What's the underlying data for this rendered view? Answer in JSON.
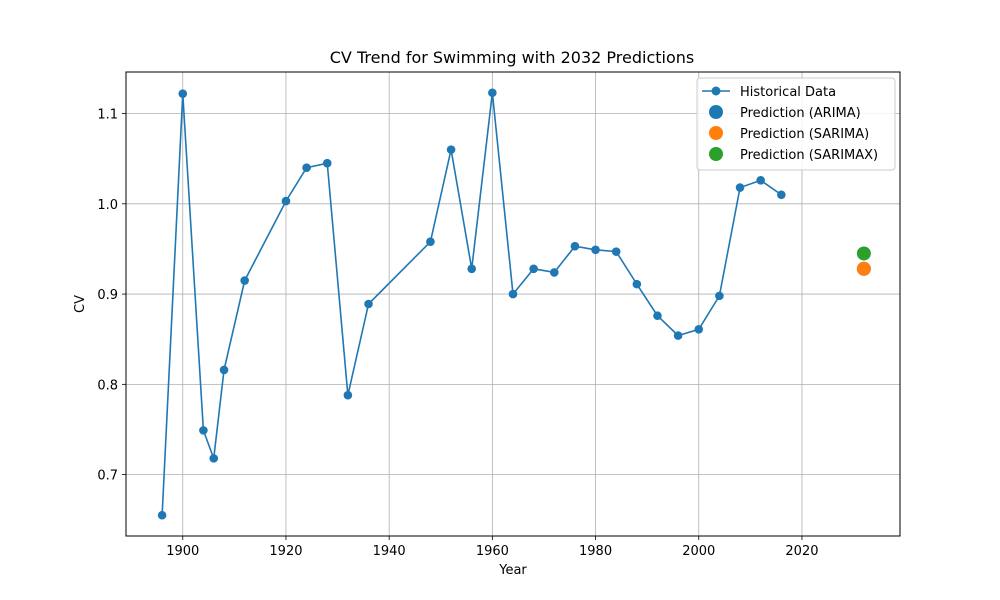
{
  "chart_data": {
    "type": "line",
    "title": "CV Trend for Swimming with 2032 Predictions",
    "xlabel": "Year",
    "ylabel": "CV",
    "xlim": [
      1889,
      2039
    ],
    "ylim": [
      0.632,
      1.146
    ],
    "xticks": [
      1900,
      1920,
      1940,
      1960,
      1980,
      2000,
      2020
    ],
    "yticks": [
      0.7,
      0.8,
      0.9,
      1.0,
      1.1
    ],
    "xtick_labels": [
      "1900",
      "1920",
      "1940",
      "1960",
      "1980",
      "2000",
      "2020"
    ],
    "ytick_labels": [
      "0.7",
      "0.8",
      "0.9",
      "1.0",
      "1.1"
    ],
    "grid": true,
    "legend_position": "top-right",
    "series": [
      {
        "name": "Historical Data",
        "color": "#1f77b4",
        "marker": "circle",
        "x": [
          1896,
          1900,
          1904,
          1906,
          1908,
          1912,
          1920,
          1924,
          1928,
          1932,
          1936,
          1948,
          1952,
          1956,
          1960,
          1964,
          1968,
          1972,
          1976,
          1980,
          1984,
          1988,
          1992,
          1996,
          2000,
          2004,
          2008,
          2012,
          2016
        ],
        "y": [
          0.655,
          1.122,
          0.749,
          0.718,
          0.816,
          0.915,
          1.003,
          1.04,
          1.045,
          0.788,
          0.889,
          0.958,
          1.06,
          0.928,
          1.123,
          0.9,
          0.928,
          0.924,
          0.953,
          0.949,
          0.947,
          0.911,
          0.876,
          0.854,
          0.861,
          0.898,
          1.018,
          1.026,
          1.01
        ]
      },
      {
        "name": "Prediction (ARIMA)",
        "color": "#1f77b4",
        "x": [
          2032
        ],
        "y": [
          0.928
        ]
      },
      {
        "name": "Prediction (SARIMA)",
        "color": "#ff7f0e",
        "x": [
          2032
        ],
        "y": [
          0.928
        ]
      },
      {
        "name": "Prediction (SARIMAX)",
        "color": "#2ca02c",
        "x": [
          2032
        ],
        "y": [
          0.945
        ]
      }
    ]
  }
}
